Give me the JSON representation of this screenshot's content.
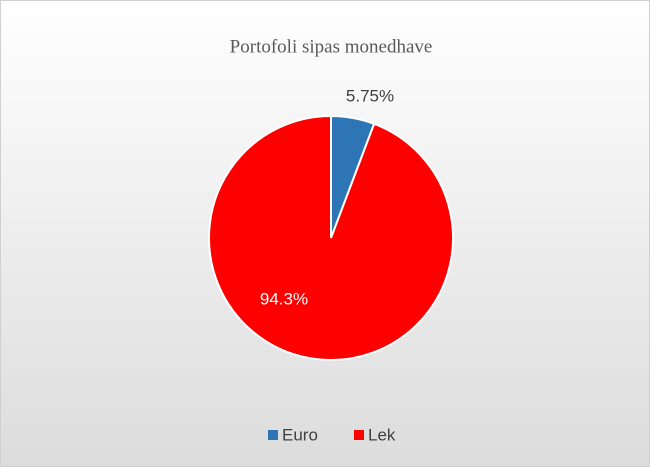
{
  "chart_data": {
    "type": "pie",
    "title": "Portofoli sipas monedhave",
    "categories": [
      "Euro",
      "Lek"
    ],
    "values": [
      5.75,
      94.3
    ],
    "value_labels": [
      "5.75%",
      "94.3%"
    ],
    "colors": [
      "#2e75b6",
      "#ff0000"
    ],
    "legend": "bottom"
  }
}
